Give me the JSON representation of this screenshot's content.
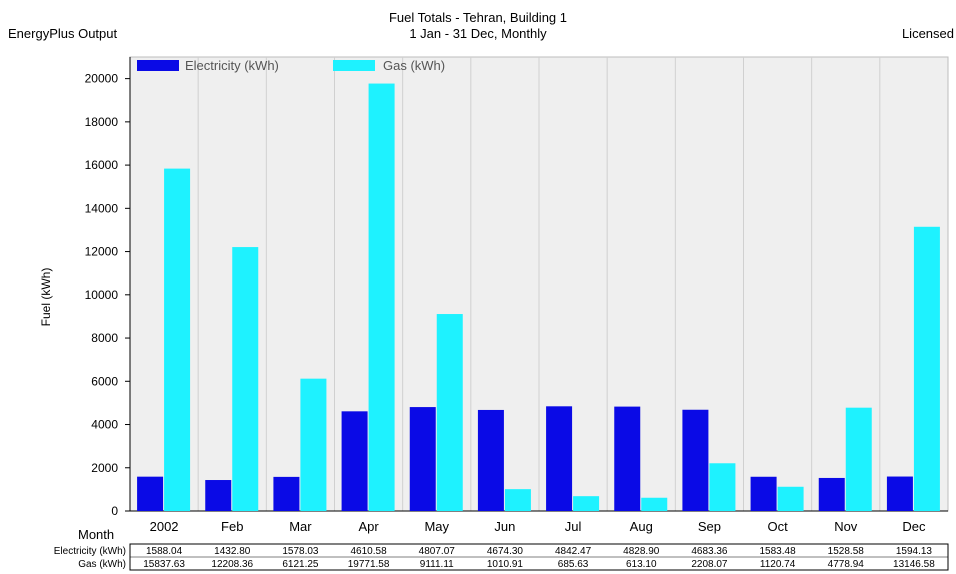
{
  "header": {
    "title": "Fuel Totals - Tehran, Building 1",
    "subtitle": "1 Jan - 31 Dec, Monthly",
    "left_note": "EnergyPlus Output",
    "right_note": "Licensed"
  },
  "chart_data": {
    "type": "bar",
    "title": "Fuel Totals - Tehran, Building 1",
    "subtitle": "1 Jan - 31 Dec, Monthly",
    "xlabel": "Month",
    "ylabel": "Fuel (kWh)",
    "ylim": [
      0,
      21000
    ],
    "yticks": [
      0,
      2000,
      4000,
      6000,
      8000,
      10000,
      12000,
      14000,
      16000,
      18000,
      20000
    ],
    "grid": "vertical",
    "legend": "top-left",
    "categories": [
      "2002",
      "Feb",
      "Mar",
      "Apr",
      "May",
      "Jun",
      "Jul",
      "Aug",
      "Sep",
      "Oct",
      "Nov",
      "Dec"
    ],
    "series": [
      {
        "name": "Electricity (kWh)",
        "table_label": "Electricity (kWh)",
        "color": "#0a0ae6",
        "values": [
          1588.04,
          1432.8,
          1578.03,
          4610.58,
          4807.07,
          4674.3,
          4842.47,
          4828.9,
          4683.36,
          1583.48,
          1528.58,
          1594.13
        ],
        "display": [
          "1588.04",
          "1432.80",
          "1578.03",
          "4610.58",
          "4807.07",
          "4674.30",
          "4842.47",
          "4828.90",
          "4683.36",
          "1583.48",
          "1528.58",
          "1594.13"
        ]
      },
      {
        "name": "Gas (kWh)",
        "table_label": "Gas (kWh)",
        "color": "#1ef2ff",
        "values": [
          15837.63,
          12208.36,
          6121.25,
          19771.58,
          9111.11,
          1010.91,
          685.63,
          613.1,
          2208.07,
          1120.74,
          4778.94,
          13146.58
        ],
        "display": [
          "15837.63",
          "12208.36",
          "6121.25",
          "19771.58",
          "9111.11",
          "1010.91",
          "685.63",
          "613.10",
          "2208.07",
          "1120.74",
          "4778.94",
          "13146.58"
        ]
      }
    ]
  }
}
